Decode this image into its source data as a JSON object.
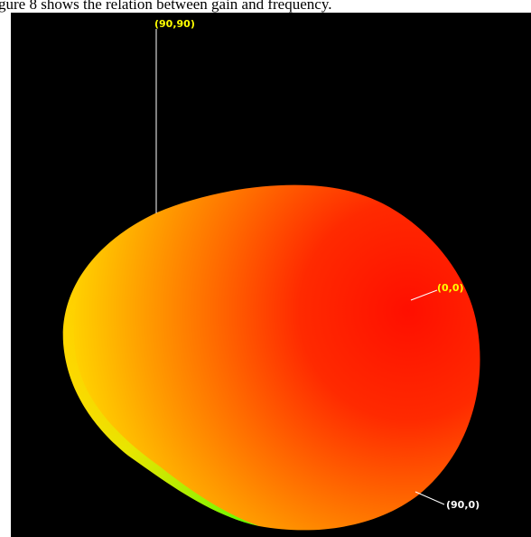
{
  "caption": "gure 8 shows the relation between gain and frequency.",
  "colors": {
    "background": "#000000",
    "surface_red": "#ff1a00",
    "surface_orange": "#ff8000",
    "surface_yellow": "#ffe000",
    "surface_green": "#66ff00",
    "label_yellow": "#ffff00",
    "label_white": "#ffffff"
  },
  "labels": {
    "top": "(90,90)",
    "right": "(0,0)",
    "bottom": "(90,0)"
  }
}
